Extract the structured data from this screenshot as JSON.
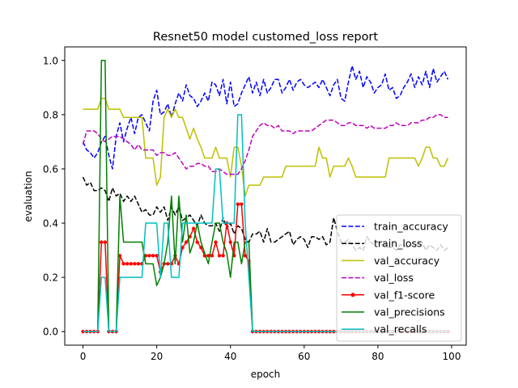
{
  "chart_data": {
    "type": "line",
    "title": "Resnet50 model customed_loss report",
    "xlabel": "epoch",
    "ylabel": "evaluation",
    "xlim": [
      -4.95,
      103.95
    ],
    "ylim": [
      -0.05,
      1.05
    ],
    "xticks": [
      0,
      20,
      40,
      60,
      80,
      100
    ],
    "yticks": [
      0.0,
      0.2,
      0.4,
      0.6,
      0.8,
      1.0
    ],
    "xtick_labels": [
      "0",
      "20",
      "40",
      "60",
      "80",
      "100"
    ],
    "ytick_labels": [
      "0.0",
      "0.2",
      "0.4",
      "0.6",
      "0.8",
      "1.0"
    ],
    "grid": false,
    "legend_position": "lower-right",
    "series": [
      {
        "name": "train_accuracy",
        "color": "#0000ff",
        "dash": "dashed",
        "marker": "none",
        "values": [
          0.7,
          0.67,
          0.66,
          0.64,
          0.66,
          0.7,
          0.72,
          0.65,
          0.6,
          0.72,
          0.77,
          0.7,
          0.75,
          0.79,
          0.73,
          0.79,
          0.8,
          0.77,
          0.74,
          0.85,
          0.89,
          0.8,
          0.81,
          0.84,
          0.79,
          0.84,
          0.88,
          0.85,
          0.91,
          0.87,
          0.86,
          0.83,
          0.85,
          0.88,
          0.85,
          0.92,
          0.91,
          0.87,
          0.93,
          0.84,
          0.92,
          0.83,
          0.84,
          0.88,
          0.91,
          0.94,
          0.88,
          0.92,
          0.87,
          0.93,
          0.88,
          0.9,
          0.93,
          0.93,
          0.88,
          0.9,
          0.93,
          0.89,
          0.92,
          0.93,
          0.91,
          0.9,
          0.91,
          0.92,
          0.9,
          0.93,
          0.9,
          0.87,
          0.91,
          0.93,
          0.86,
          0.85,
          0.92,
          0.98,
          0.93,
          0.96,
          0.9,
          0.94,
          0.92,
          0.88,
          0.9,
          0.91,
          0.95,
          0.89,
          0.9,
          0.86,
          0.87,
          0.9,
          0.92,
          0.95,
          0.9,
          0.94,
          0.91,
          0.96,
          0.9,
          0.97,
          0.92,
          0.94,
          0.96,
          0.93
        ]
      },
      {
        "name": "train_loss",
        "color": "#000000",
        "dash": "dashed",
        "marker": "none",
        "values": [
          0.57,
          0.54,
          0.55,
          0.52,
          0.52,
          0.53,
          0.52,
          0.48,
          0.53,
          0.5,
          0.51,
          0.48,
          0.5,
          0.48,
          0.5,
          0.47,
          0.44,
          0.45,
          0.43,
          0.43,
          0.46,
          0.44,
          0.46,
          0.41,
          0.46,
          0.43,
          0.46,
          0.41,
          0.42,
          0.43,
          0.41,
          0.39,
          0.43,
          0.4,
          0.39,
          0.39,
          0.4,
          0.37,
          0.42,
          0.38,
          0.4,
          0.36,
          0.39,
          0.38,
          0.34,
          0.33,
          0.36,
          0.36,
          0.37,
          0.33,
          0.38,
          0.33,
          0.33,
          0.34,
          0.35,
          0.36,
          0.37,
          0.32,
          0.34,
          0.35,
          0.34,
          0.31,
          0.35,
          0.35,
          0.34,
          0.35,
          0.32,
          0.33,
          0.42,
          0.37,
          0.33,
          0.33,
          0.34,
          0.32,
          0.3,
          0.31,
          0.3,
          0.35,
          0.33,
          0.32,
          0.33,
          0.32,
          0.32,
          0.31,
          0.31,
          0.3,
          0.32,
          0.32,
          0.31,
          0.32,
          0.31,
          0.33,
          0.33,
          0.3,
          0.32,
          0.31,
          0.3,
          0.32,
          0.3,
          0.31
        ]
      },
      {
        "name": "val_accuracy",
        "color": "#bfbf00",
        "dash": "solid",
        "marker": "none",
        "values": [
          0.82,
          0.82,
          0.82,
          0.82,
          0.82,
          0.86,
          0.86,
          0.82,
          0.82,
          0.82,
          0.82,
          0.79,
          0.79,
          0.79,
          0.79,
          0.79,
          0.79,
          0.64,
          0.64,
          0.64,
          0.54,
          0.57,
          0.79,
          0.82,
          0.79,
          0.82,
          0.79,
          0.79,
          0.75,
          0.71,
          0.75,
          0.71,
          0.68,
          0.64,
          0.64,
          0.64,
          0.68,
          0.64,
          0.64,
          0.64,
          0.57,
          0.68,
          0.68,
          0.61,
          0.5,
          0.54,
          0.54,
          0.54,
          0.54,
          0.57,
          0.57,
          0.57,
          0.57,
          0.57,
          0.57,
          0.61,
          0.61,
          0.61,
          0.61,
          0.61,
          0.61,
          0.61,
          0.61,
          0.61,
          0.68,
          0.64,
          0.64,
          0.57,
          0.61,
          0.61,
          0.61,
          0.61,
          0.64,
          0.61,
          0.57,
          0.57,
          0.57,
          0.57,
          0.57,
          0.57,
          0.57,
          0.57,
          0.57,
          0.64,
          0.64,
          0.64,
          0.64,
          0.64,
          0.64,
          0.64,
          0.64,
          0.61,
          0.64,
          0.68,
          0.68,
          0.64,
          0.64,
          0.61,
          0.61,
          0.64
        ]
      },
      {
        "name": "val_loss",
        "color": "#bf00bf",
        "dash": "dashed",
        "marker": "none",
        "values": [
          0.69,
          0.74,
          0.74,
          0.74,
          0.73,
          0.71,
          0.7,
          0.71,
          0.72,
          0.72,
          0.72,
          0.71,
          0.7,
          0.69,
          0.67,
          0.69,
          0.67,
          0.67,
          0.67,
          0.67,
          0.65,
          0.66,
          0.66,
          0.65,
          0.65,
          0.66,
          0.64,
          0.62,
          0.6,
          0.61,
          0.61,
          0.62,
          0.62,
          0.61,
          0.61,
          0.59,
          0.59,
          0.6,
          0.59,
          0.58,
          0.58,
          0.58,
          0.58,
          0.6,
          0.63,
          0.67,
          0.72,
          0.74,
          0.76,
          0.77,
          0.76,
          0.76,
          0.75,
          0.76,
          0.74,
          0.74,
          0.74,
          0.73,
          0.74,
          0.74,
          0.74,
          0.74,
          0.74,
          0.75,
          0.76,
          0.77,
          0.78,
          0.78,
          0.78,
          0.77,
          0.76,
          0.76,
          0.77,
          0.77,
          0.76,
          0.76,
          0.76,
          0.75,
          0.76,
          0.75,
          0.75,
          0.75,
          0.75,
          0.76,
          0.76,
          0.77,
          0.76,
          0.76,
          0.76,
          0.77,
          0.77,
          0.77,
          0.78,
          0.78,
          0.79,
          0.79,
          0.8,
          0.8,
          0.79,
          0.79
        ]
      },
      {
        "name": "val_f1-score",
        "color": "#ff0000",
        "dash": "solid",
        "marker": "circle",
        "values": [
          0,
          0,
          0,
          0,
          0,
          0.33,
          0.33,
          0,
          0,
          0,
          0.28,
          0.25,
          0.25,
          0.25,
          0.25,
          0.25,
          0.25,
          0.28,
          0.28,
          0.28,
          0.28,
          0.22,
          0.25,
          0.25,
          0.25,
          0.28,
          0.25,
          0.31,
          0.33,
          0.35,
          0.38,
          0.33,
          0.31,
          0.28,
          0.28,
          0.28,
          0.33,
          0.28,
          0.28,
          0.4,
          0.33,
          0.28,
          0.47,
          0.47,
          0.28,
          0.26,
          0,
          0,
          0,
          0,
          0,
          0,
          0,
          0,
          0,
          0,
          0,
          0,
          0,
          0,
          0,
          0,
          0,
          0,
          0,
          0,
          0,
          0,
          0,
          0,
          0,
          0,
          0,
          0,
          0,
          0,
          0,
          0,
          0,
          0,
          0,
          0,
          0,
          0,
          0,
          0,
          0,
          0,
          0,
          0,
          0,
          0,
          0,
          0,
          0,
          0,
          0,
          0,
          0,
          0
        ]
      },
      {
        "name": "val_precisions",
        "color": "#008000",
        "dash": "solid",
        "marker": "none",
        "values": [
          0,
          0,
          0,
          0,
          0,
          1.0,
          1.0,
          0,
          0,
          0,
          0.5,
          0.33,
          0.33,
          0.33,
          0.33,
          0.33,
          0.33,
          0.25,
          0.25,
          0.25,
          0.17,
          0.2,
          0.25,
          0.33,
          0.5,
          0.25,
          0.5,
          0.33,
          0.43,
          0.29,
          0.33,
          0.4,
          0.33,
          0.29,
          0.25,
          0.33,
          0.4,
          0.4,
          0.33,
          0.29,
          0.2,
          0.33,
          0.33,
          0.25,
          0.33,
          0.33,
          0,
          0,
          0,
          0,
          0,
          0,
          0,
          0,
          0,
          0,
          0,
          0,
          0,
          0,
          0,
          0,
          0,
          0,
          0,
          0,
          0,
          0,
          0,
          0,
          0,
          0,
          0,
          0,
          0,
          0,
          0,
          0,
          0,
          0,
          0,
          0,
          0,
          0,
          0,
          0,
          0,
          0,
          0,
          0,
          0,
          0,
          0,
          0,
          0,
          0,
          0,
          0,
          0,
          0
        ]
      },
      {
        "name": "val_recalls",
        "color": "#00bfbf",
        "dash": "solid",
        "marker": "none",
        "values": [
          0,
          0,
          0,
          0,
          0,
          0.2,
          0.2,
          0,
          0,
          0,
          0.2,
          0.2,
          0.2,
          0.2,
          0.2,
          0.2,
          0.2,
          0.4,
          0.4,
          0.4,
          0.4,
          0.2,
          0.4,
          0.4,
          0.2,
          0.2,
          0.2,
          0.4,
          0.4,
          0.4,
          0.4,
          0.4,
          0.4,
          0.4,
          0.4,
          0.4,
          0.6,
          0.6,
          0.4,
          0.4,
          0.4,
          0.4,
          0.8,
          0.8,
          0.4,
          0.2,
          0,
          0,
          0,
          0,
          0,
          0,
          0,
          0,
          0,
          0,
          0,
          0,
          0,
          0,
          0,
          0,
          0,
          0,
          0,
          0,
          0,
          0,
          0,
          0,
          0,
          0,
          0,
          0,
          0,
          0,
          0,
          0,
          0,
          0,
          0,
          0,
          0,
          0,
          0,
          0,
          0,
          0,
          0,
          0,
          0,
          0,
          0,
          0,
          0,
          0,
          0,
          0,
          0,
          0
        ]
      }
    ]
  }
}
